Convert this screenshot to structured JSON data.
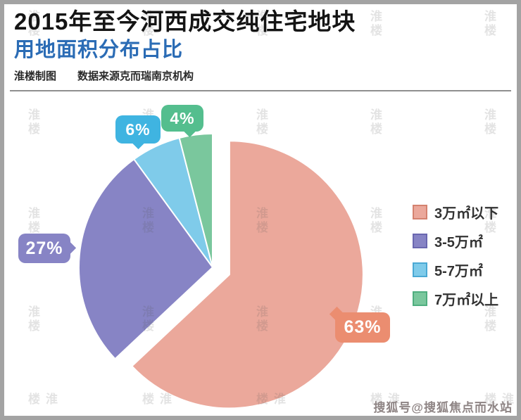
{
  "header": {
    "title_line1": "2015年至今河西成交纯住宅地块",
    "title_line2": "用地面积分布占比",
    "credit": "淮楼制图",
    "source": "数据来源克而瑞南京机构"
  },
  "watermark": {
    "text": "淮楼"
  },
  "footer": {
    "watermark": "搜狐号@搜狐焦点而水站"
  },
  "chart_data": {
    "type": "pie",
    "title": "2015年至今河西成交纯住宅地块用地面积分布占比",
    "unit": "percent",
    "legend_position": "right",
    "slices": [
      {
        "label": "3万㎡以下",
        "value": 63,
        "display": "63%",
        "color": "#ebA89b",
        "callout_color": "#eb8d70",
        "swatch_border": "#d4826f",
        "exploded": true
      },
      {
        "label": "3-5万㎡",
        "value": 27,
        "display": "27%",
        "color": "#8784c5",
        "callout_color": "#8784c5",
        "swatch_border": "#6a67b0",
        "exploded": false
      },
      {
        "label": "5-7万㎡",
        "value": 6,
        "display": "6%",
        "color": "#7fcbea",
        "callout_color": "#3fb4e1",
        "swatch_border": "#4aa9d4",
        "exploded": false
      },
      {
        "label": "7万㎡以上",
        "value": 4,
        "display": "4%",
        "color": "#7ac79d",
        "callout_color": "#54be8e",
        "swatch_border": "#4fae7f",
        "exploded": false
      }
    ]
  }
}
